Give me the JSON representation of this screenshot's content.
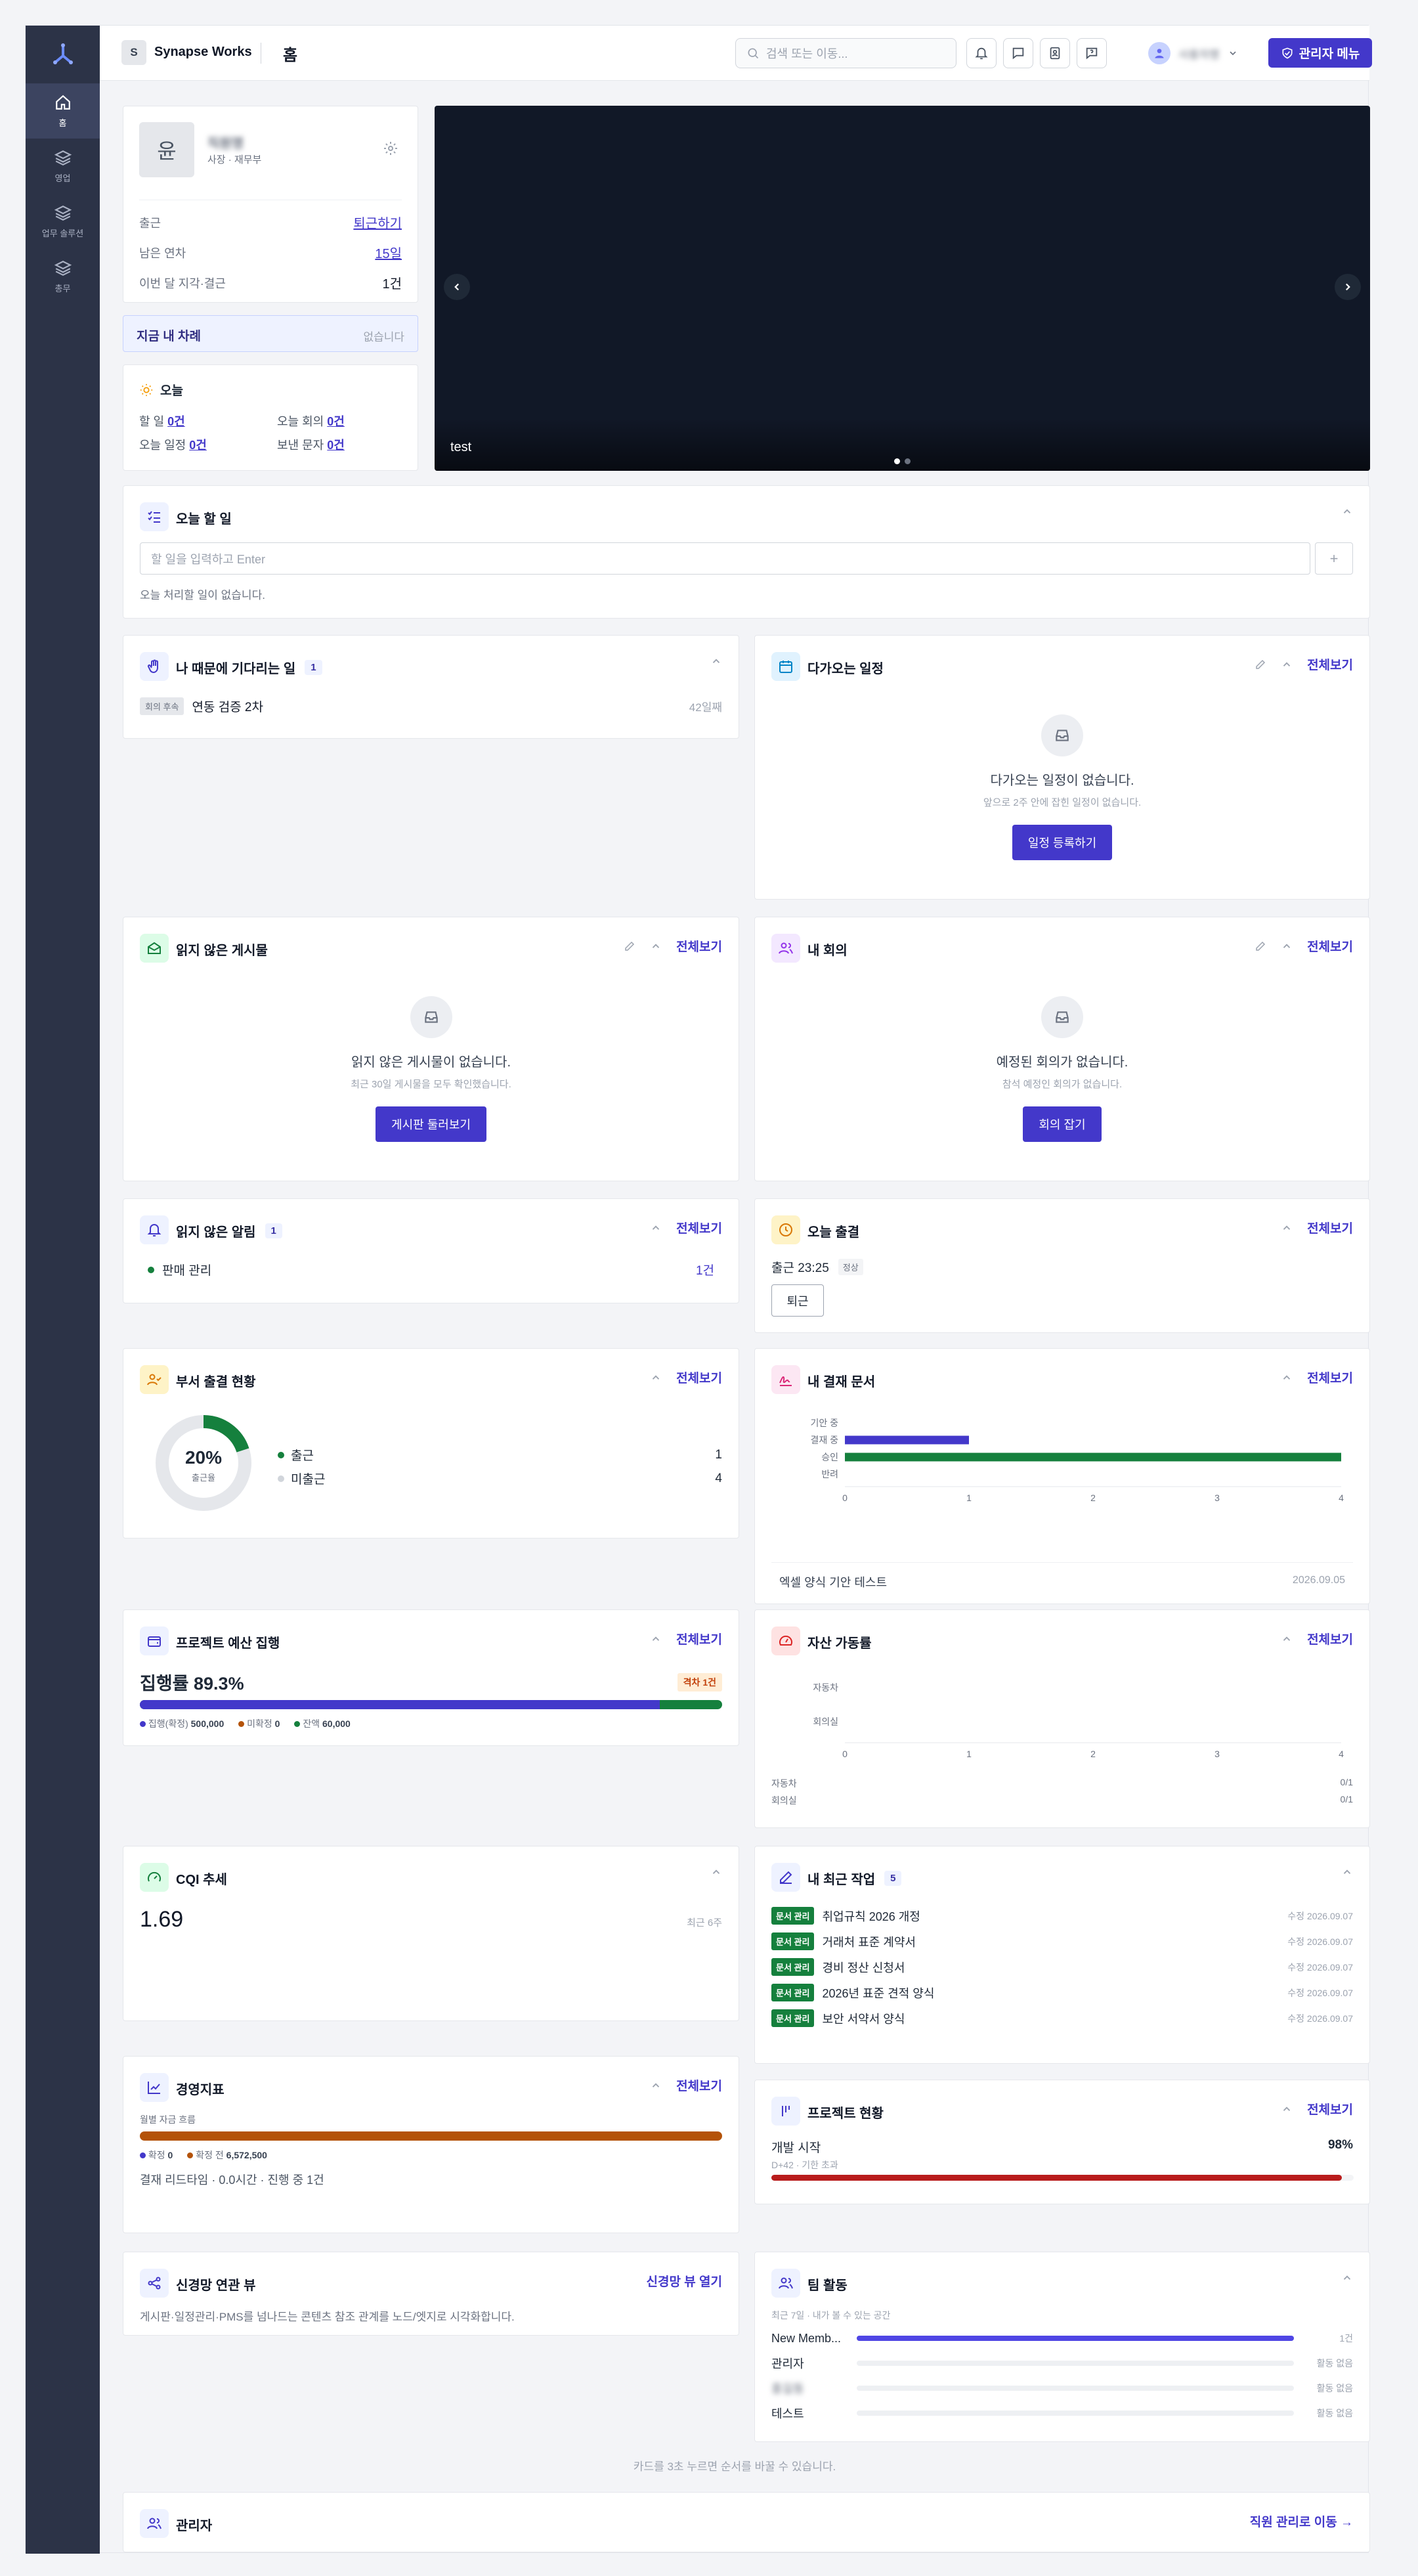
{
  "sidebar": {
    "items": [
      {
        "label": "홈"
      },
      {
        "label": "영업"
      },
      {
        "label": "업무 솔루션"
      },
      {
        "label": "총무"
      }
    ]
  },
  "topbar": {
    "workspace_badge": "S",
    "workspace": "Synapse Works",
    "page_title": "홈",
    "search_placeholder": "검색 또는 이동...",
    "user_name": "사용자명",
    "admin_button": "관리자 메뉴"
  },
  "profile": {
    "avatar": "윤",
    "name": "직원명",
    "role": "사장 · 재무부",
    "rows": [
      {
        "label": "출근",
        "value": "퇴근하기"
      },
      {
        "label": "남은 연차",
        "value": "15일"
      },
      {
        "label": "이번 달 지각·결근",
        "value": "1건"
      }
    ]
  },
  "my_turn": {
    "label": "지금 내 차례",
    "value": "없습니다"
  },
  "today": {
    "title": "오늘",
    "stats": [
      {
        "label": "할 일",
        "value": "0건"
      },
      {
        "label": "오늘 회의",
        "value": "0건"
      },
      {
        "label": "오늘 일정",
        "value": "0건"
      },
      {
        "label": "보낸 문자",
        "value": "0건"
      }
    ]
  },
  "banner": {
    "caption": "test"
  },
  "todo": {
    "title": "오늘 할 일",
    "placeholder": "할 일을 입력하고 Enter",
    "add": "+",
    "empty": "오늘 처리할 일이 없습니다."
  },
  "waiting": {
    "title": "나 때문에 기다리는 일",
    "count": "1",
    "tag": "회의 후속",
    "item": "연동 검증 2차",
    "age": "42일째"
  },
  "schedule": {
    "title": "다가오는 일정",
    "view_all": "전체보기",
    "empty_title": "다가오는 일정이 없습니다.",
    "empty_sub": "앞으로 2주 안에 잡힌 일정이 없습니다.",
    "button": "일정 등록하기"
  },
  "posts": {
    "title": "읽지 않은 게시물",
    "view_all": "전체보기",
    "empty_title": "읽지 않은 게시물이 없습니다.",
    "empty_sub": "최근 30일 게시물을 모두 확인했습니다.",
    "button": "게시판 둘러보기"
  },
  "meetings": {
    "title": "내 회의",
    "view_all": "전체보기",
    "empty_title": "예정된 회의가 없습니다.",
    "empty_sub": "참석 예정인 회의가 없습니다.",
    "button": "회의 잡기"
  },
  "alerts": {
    "title": "읽지 않은 알림",
    "count": "1",
    "view_all": "전체보기",
    "item": "판매 관리",
    "value": "1건"
  },
  "attendance": {
    "title": "오늘 출결",
    "view_all": "전체보기",
    "status": "출근 23:25",
    "badge": "정상",
    "button": "퇴근"
  },
  "dept": {
    "title": "부서 출결 현황",
    "view_all": "전체보기",
    "percent": "20%",
    "percent_label": "출근율",
    "ratio": 0.2,
    "rows": [
      {
        "label": "출근",
        "value": "1"
      },
      {
        "label": "미출근",
        "value": "4"
      }
    ]
  },
  "approval": {
    "title": "내 결재 문서",
    "view_all": "전체보기",
    "doc": "엑셀 양식 기안 테스트",
    "date": "2026.09.05",
    "chart_data": {
      "type": "bar",
      "orientation": "horizontal",
      "categories": [
        "기안 중",
        "결재 중",
        "승인",
        "반려"
      ],
      "values": [
        0,
        1,
        4,
        0
      ],
      "xlim": [
        0,
        4
      ],
      "xticks": [
        "0",
        "1",
        "2",
        "3",
        "4"
      ],
      "colors": [
        "#4338ca",
        "#4338ca",
        "#15803d",
        "#4338ca"
      ]
    }
  },
  "budget": {
    "title": "프로젝트 예산 집행",
    "view_all": "전체보기",
    "rate": "집행률 89.3%",
    "badge": "격차 1건",
    "ratio": 0.893,
    "legend": [
      {
        "label": "집행(확정)",
        "value": "500,000"
      },
      {
        "label": "미확정",
        "value": "0"
      },
      {
        "label": "잔액",
        "value": "60,000"
      }
    ]
  },
  "assets": {
    "title": "자산 가동률",
    "view_all": "전체보기",
    "chart_data": {
      "type": "bar",
      "orientation": "horizontal",
      "categories": [
        "자동차",
        "회의실"
      ],
      "values": [
        0,
        0
      ],
      "xlim": [
        0,
        4
      ],
      "xticks": [
        "0",
        "1",
        "2",
        "3",
        "4"
      ]
    },
    "rows": [
      {
        "label": "자동차",
        "value": "0/1"
      },
      {
        "label": "회의실",
        "value": "0/1"
      }
    ]
  },
  "cqi": {
    "title": "CQI 추세",
    "value": "1.69",
    "period": "최근 6주"
  },
  "recent": {
    "title": "내 최근 작업",
    "count": "5",
    "items": [
      {
        "tag": "문서 관리",
        "title": "취업규칙 2026 개정",
        "action": "수정",
        "date": "2026.09.07"
      },
      {
        "tag": "문서 관리",
        "title": "거래처 표준 계약서",
        "action": "수정",
        "date": "2026.09.07"
      },
      {
        "tag": "문서 관리",
        "title": "경비 정산 신청서",
        "action": "수정",
        "date": "2026.09.07"
      },
      {
        "tag": "문서 관리",
        "title": "2026년 표준 견적 양식",
        "action": "수정",
        "date": "2026.09.07"
      },
      {
        "tag": "문서 관리",
        "title": "보안 서약서 양식",
        "action": "수정",
        "date": "2026.09.07"
      }
    ]
  },
  "kpi": {
    "title": "경영지표",
    "view_all": "전체보기",
    "sub": "월별 자금 흐름",
    "legend": [
      {
        "label": "확정",
        "value": "0"
      },
      {
        "label": "확정 전",
        "value": "6,572,500"
      }
    ],
    "footer": "결재 리드타임 · 0.0시간 · 진행 중 1건"
  },
  "project": {
    "title": "프로젝트 현황",
    "view_all": "전체보기",
    "name": "개발 시작",
    "percent": "98%",
    "ratio": 0.98,
    "sub": "D+42 · 기한 초과"
  },
  "graph": {
    "title": "신경망 연관 뷰",
    "link": "신경망 뷰 열기",
    "desc": "게시판·일정관리·PMS를 넘나드는 콘텐츠 참조 관계를 노드/엣지로 시각화합니다."
  },
  "team": {
    "title": "팀 활동",
    "sub": "최근 7일 · 내가 볼 수 있는 공간",
    "rows": [
      {
        "name": "New Memb...",
        "value": "1건",
        "ratio": 1
      },
      {
        "name": "관리자",
        "value": "활동 없음",
        "ratio": 0
      },
      {
        "name": "홍길동",
        "value": "활동 없음",
        "ratio": 0
      },
      {
        "name": "테스트",
        "value": "활동 없음",
        "ratio": 0
      }
    ]
  },
  "hint": "카드를 3초 누르면 순서를 바꿀 수 있습니다.",
  "admin": {
    "title": "관리자",
    "link": "직원 관리로 이동 →"
  }
}
